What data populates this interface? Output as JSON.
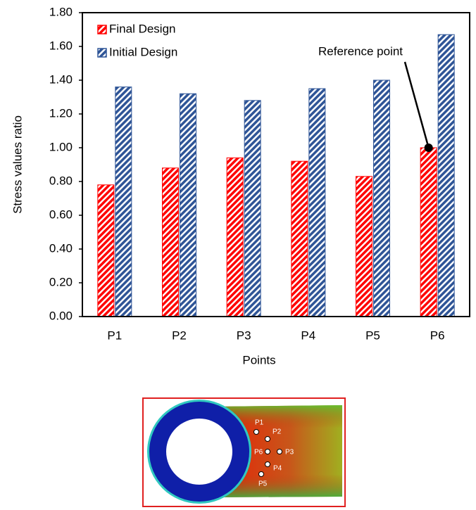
{
  "chart_data": {
    "type": "bar",
    "xlabel": "Points",
    "ylabel": "Stress values ratio",
    "categories": [
      "P1",
      "P2",
      "P3",
      "P4",
      "P5",
      "P6"
    ],
    "series": [
      {
        "name": "Final Design",
        "color": "#ff0000",
        "values": [
          0.78,
          0.88,
          0.94,
          0.92,
          0.83,
          1.0
        ]
      },
      {
        "name": "Initial Design",
        "color": "#2f5597",
        "values": [
          1.36,
          1.32,
          1.28,
          1.35,
          1.4,
          1.67
        ]
      }
    ],
    "ylim": [
      0,
      1.8
    ],
    "yticks": [
      {
        "value": 0,
        "label": "0.00"
      },
      {
        "value": 0.2,
        "label": "0.20"
      },
      {
        "value": 0.4,
        "label": "0.40"
      },
      {
        "value": 0.6,
        "label": "0.60"
      },
      {
        "value": 0.8,
        "label": "0.80"
      },
      {
        "value": 1,
        "label": "1.00"
      },
      {
        "value": 1.2,
        "label": "1.20"
      },
      {
        "value": 1.4,
        "label": "1.40"
      },
      {
        "value": 1.6,
        "label": "1.60"
      },
      {
        "value": 1.8,
        "label": "1.80"
      }
    ],
    "annotation": "Reference point",
    "legend": "upper left",
    "inset_labels": [
      "P1",
      "P2",
      "P3",
      "P4",
      "P5",
      "P6"
    ]
  }
}
